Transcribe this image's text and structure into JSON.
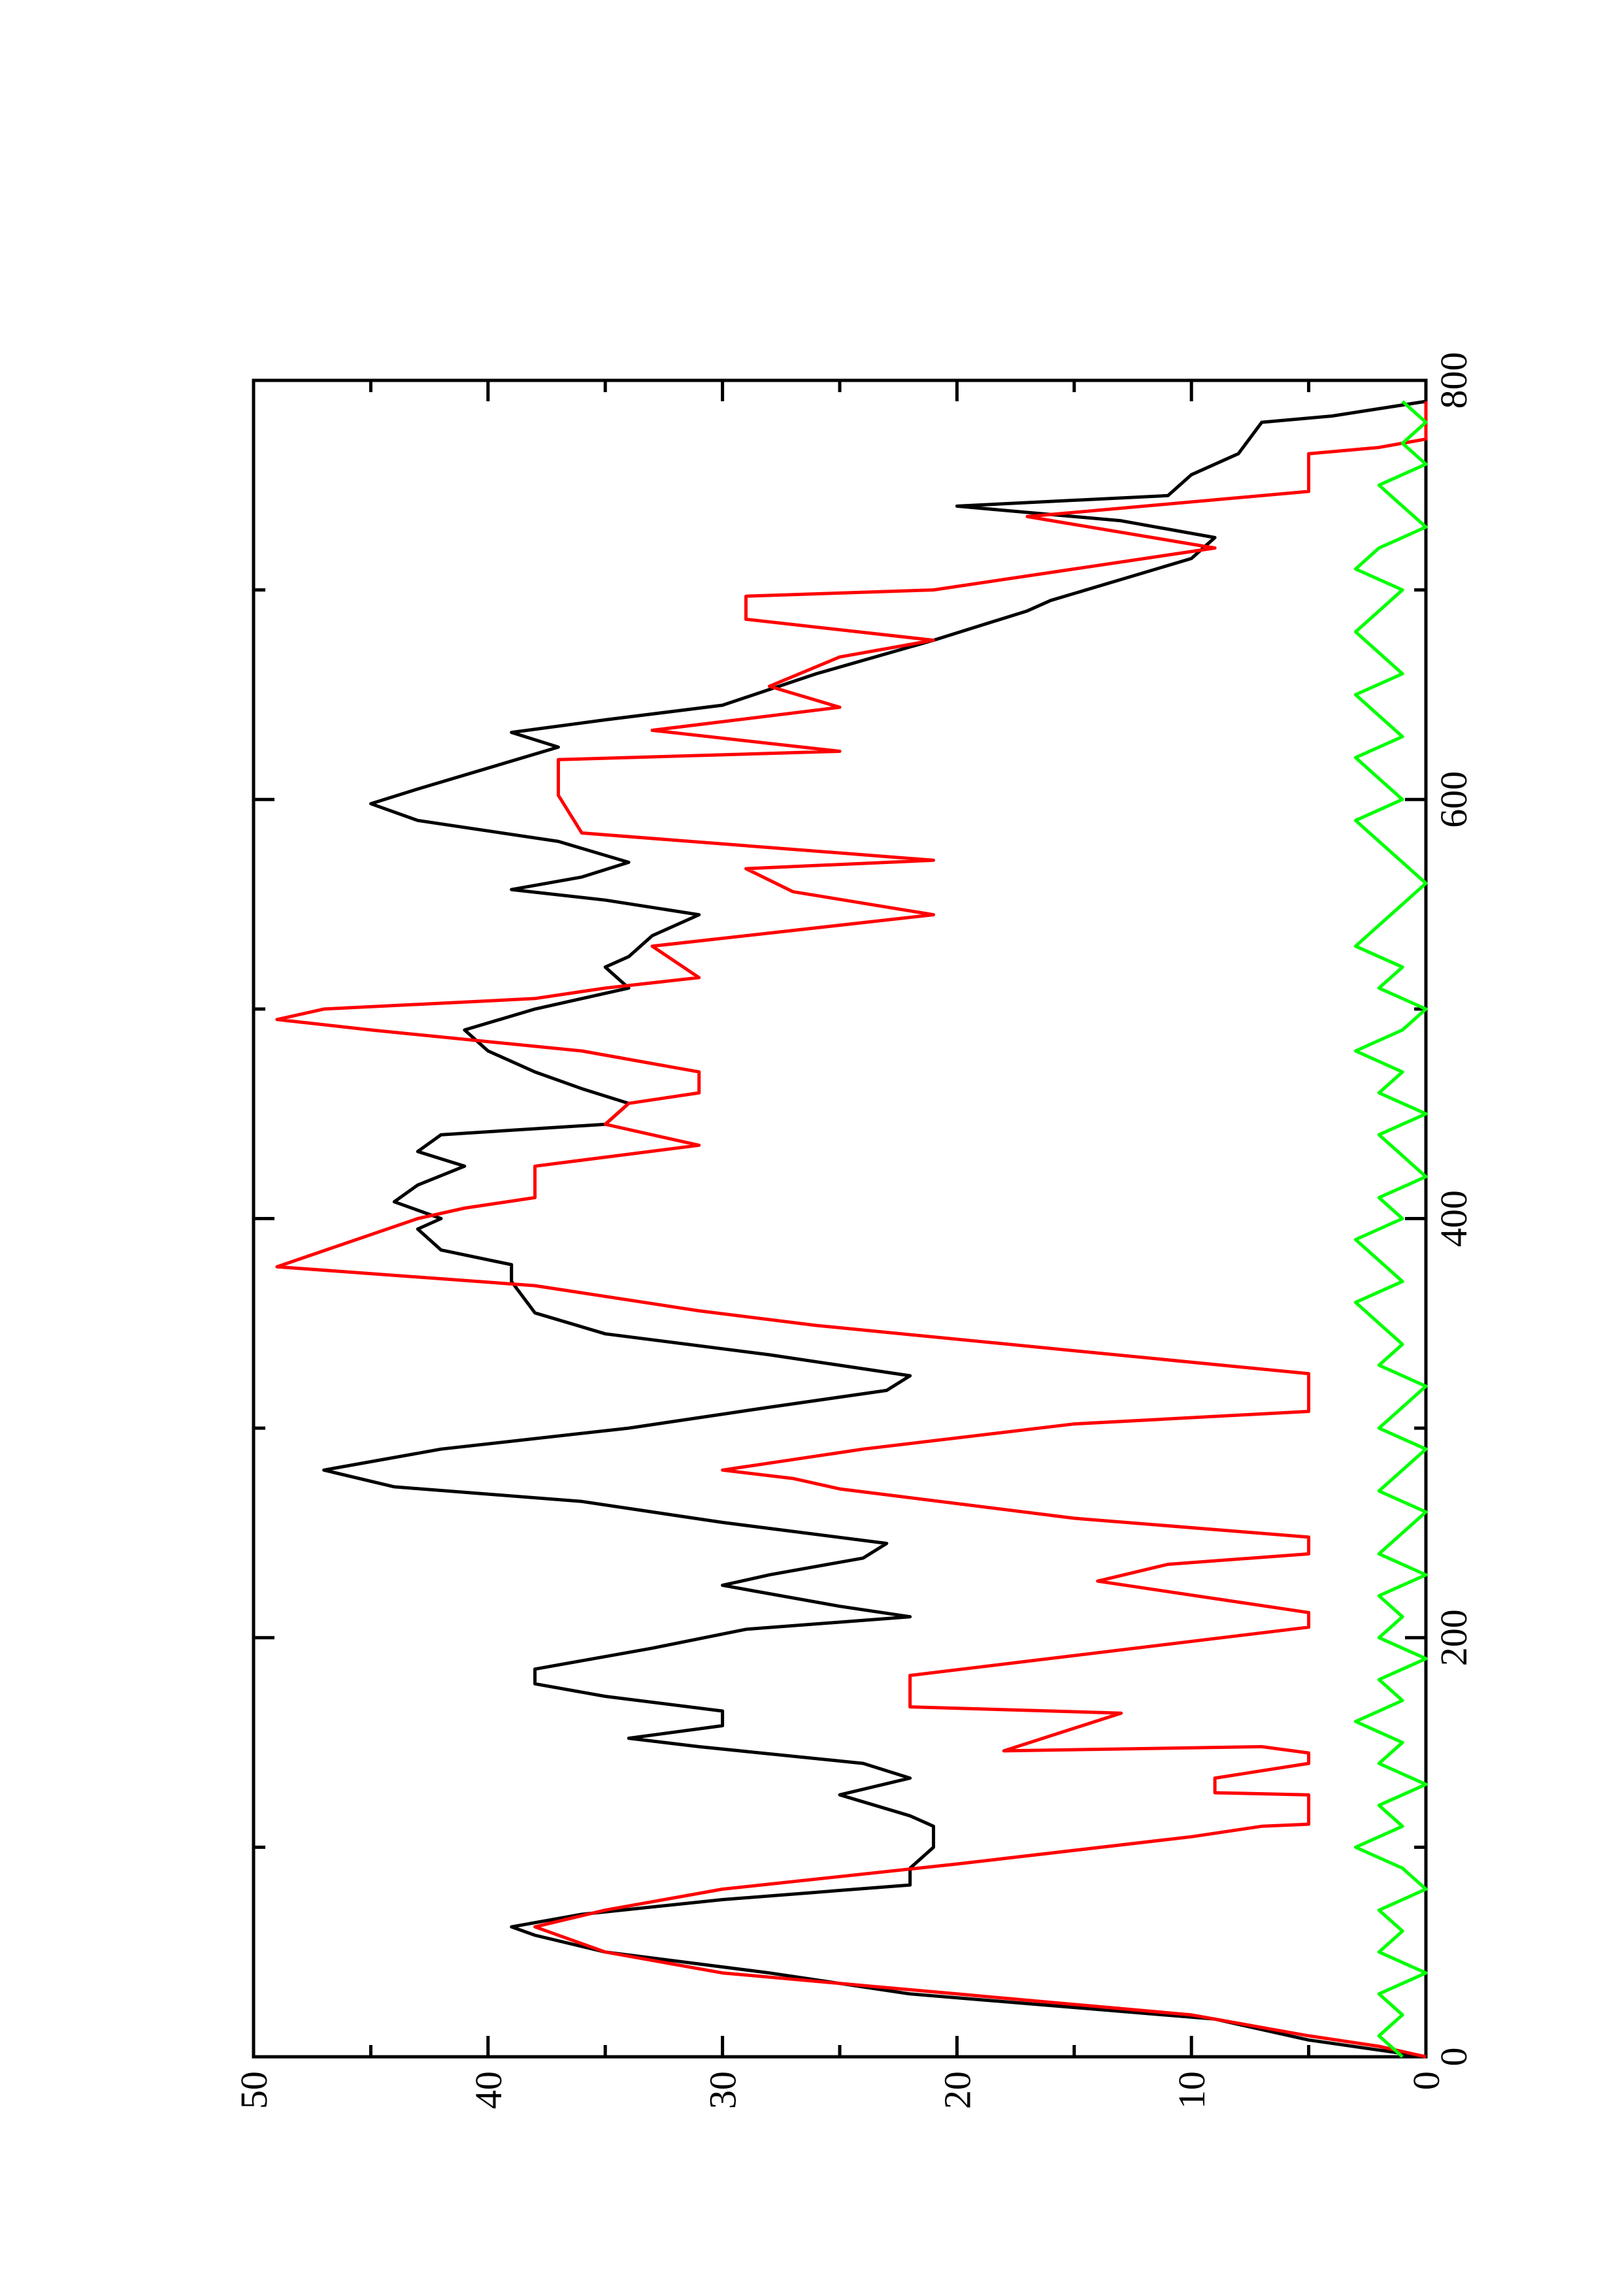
{
  "chart_data": {
    "type": "line",
    "xlim": [
      0,
      800
    ],
    "xticks": [
      0,
      200,
      400,
      600,
      800
    ],
    "ylim": [
      0,
      50
    ],
    "yticks": [
      0,
      10,
      20,
      30,
      40,
      50
    ],
    "series": [
      {
        "color": "#000000",
        "x": [
          0,
          8,
          18,
          30,
          40,
          50,
          58,
          62,
          68,
          75,
          82,
          90,
          100,
          110,
          115,
          125,
          133,
          140,
          148,
          152,
          158,
          165,
          172,
          178,
          185,
          195,
          204,
          210,
          215,
          225,
          230,
          238,
          245,
          255,
          265,
          272,
          280,
          290,
          300,
          310,
          318,
          325,
          335,
          345,
          355,
          370,
          378,
          385,
          395,
          400,
          408,
          416,
          425,
          432,
          440,
          445,
          455,
          462,
          470,
          480,
          490,
          500,
          510,
          520,
          525,
          535,
          545,
          552,
          557,
          563,
          570,
          580,
          590,
          598,
          605,
          615,
          625,
          632,
          638,
          645,
          660,
          676,
          690,
          695,
          705,
          715,
          725,
          733,
          740,
          745,
          755,
          765,
          780,
          783,
          790
        ],
        "values": [
          0,
          5,
          9,
          22,
          28,
          35,
          38,
          39,
          36,
          30,
          22,
          22,
          21,
          21,
          22,
          25,
          22,
          24,
          31,
          34,
          30,
          30,
          35,
          38,
          38,
          33,
          29,
          22,
          25,
          30,
          28,
          24,
          23,
          30,
          36,
          44,
          47,
          42,
          34,
          28,
          23,
          22,
          28,
          35,
          38,
          39,
          39,
          42,
          43,
          42,
          44,
          43,
          41,
          43,
          42,
          35,
          34,
          36,
          38,
          40,
          41,
          38,
          34,
          35,
          34,
          33,
          31,
          35,
          39,
          36,
          34,
          37,
          43,
          45,
          43,
          40,
          37,
          39,
          35,
          30,
          26,
          21,
          17,
          16,
          13,
          10,
          9,
          13,
          20,
          11,
          10,
          8,
          7,
          4,
          0
        ]
      },
      {
        "color": "#ff0000",
        "x": [
          0,
          5,
          10,
          20,
          30,
          40,
          50,
          62,
          70,
          80,
          92,
          105,
          110,
          111,
          125,
          126,
          133,
          140,
          145,
          148,
          146,
          164,
          167,
          182,
          205,
          212,
          227,
          235,
          240,
          248,
          257,
          271,
          276,
          280,
          290,
          302,
          308,
          326,
          349,
          356,
          368,
          377,
          400,
          405,
          410,
          425,
          435,
          445,
          455,
          460,
          470,
          480,
          490,
          495,
          500,
          505,
          510,
          515,
          530,
          545,
          556,
          567,
          571,
          584,
          602,
          619,
          623,
          633,
          644,
          654,
          668,
          676,
          686,
          697,
          700,
          720,
          735,
          747,
          765,
          768,
          772,
          790
        ],
        "values": [
          0,
          2,
          5,
          10,
          20,
          30,
          35,
          38,
          35,
          30,
          20,
          10,
          7,
          5,
          5,
          9,
          9,
          5,
          5,
          7,
          18,
          13,
          22,
          22,
          5,
          5,
          14,
          11,
          5,
          5,
          15,
          25,
          27,
          30,
          24,
          15,
          5,
          5,
          26,
          31,
          38,
          49,
          43,
          41,
          38,
          38,
          31,
          35,
          34,
          31,
          31,
          36,
          45,
          49,
          47,
          38,
          35,
          31,
          33,
          21,
          27,
          29,
          21,
          36,
          37,
          37,
          25,
          33,
          25,
          28,
          25,
          21,
          29,
          29,
          21,
          9,
          17,
          5,
          5,
          2,
          0,
          0
        ]
      },
      {
        "color": "#00ff00",
        "x": [
          0,
          10,
          20,
          30,
          40,
          50,
          60,
          70,
          80,
          90,
          100,
          110,
          120,
          130,
          140,
          150,
          160,
          170,
          180,
          190,
          200,
          210,
          220,
          230,
          240,
          250,
          260,
          270,
          280,
          290,
          300,
          310,
          320,
          330,
          340,
          350,
          360,
          370,
          380,
          390,
          400,
          410,
          420,
          430,
          440,
          450,
          460,
          470,
          480,
          490,
          500,
          510,
          520,
          530,
          540,
          550,
          560,
          570,
          580,
          590,
          600,
          610,
          620,
          630,
          640,
          650,
          660,
          670,
          680,
          690,
          700,
          710,
          720,
          730,
          740,
          750,
          760,
          770,
          780,
          790
        ],
        "values": [
          1,
          2,
          1,
          2,
          0,
          2,
          1,
          2,
          0,
          1,
          3,
          1,
          2,
          0,
          2,
          1,
          3,
          1,
          2,
          0,
          2,
          1,
          2,
          0,
          2,
          1,
          0,
          2,
          1,
          0,
          2,
          1,
          0,
          2,
          1,
          2,
          3,
          1,
          2,
          3,
          1,
          2,
          0,
          1,
          2,
          0,
          2,
          1,
          3,
          1,
          0,
          2,
          1,
          3,
          2,
          1,
          0,
          1,
          2,
          3,
          1,
          2,
          3,
          1,
          2,
          3,
          1,
          2,
          3,
          2,
          1,
          3,
          2,
          0,
          1,
          2,
          0,
          1,
          0,
          1
        ]
      }
    ]
  }
}
